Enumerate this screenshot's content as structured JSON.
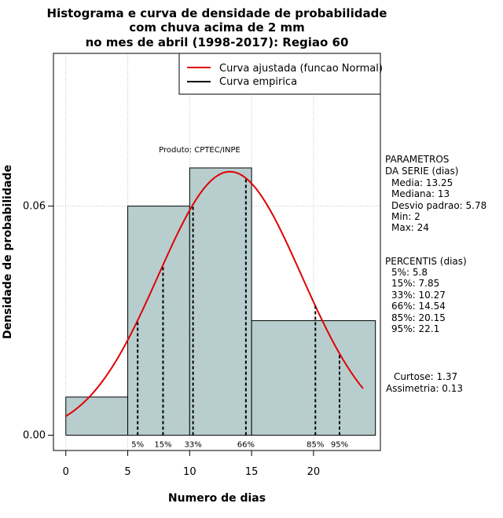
{
  "chart_data": {
    "type": "histogram",
    "title": [
      "Histograma e curva de densidade de probabilidade",
      "com chuva acima de 2 mm",
      "no mes de abril (1998-2017): Regiao 60"
    ],
    "xlabel": "Numero de dias",
    "ylabel": "Densidade de probabilidade",
    "xlim": [
      -1,
      25.4
    ],
    "ylim": [
      -0.004,
      0.1
    ],
    "xticks": [
      0,
      5,
      10,
      15,
      20
    ],
    "yticks": [
      0.0,
      0.06
    ],
    "ytick_labels": [
      "0.00",
      "0.06"
    ],
    "bins": [
      {
        "from": 0,
        "to": 5,
        "density": 0.01
      },
      {
        "from": 5,
        "to": 10,
        "density": 0.06
      },
      {
        "from": 10,
        "to": 15,
        "density": 0.07
      },
      {
        "from": 15,
        "to": 25,
        "density": 0.03
      }
    ],
    "bar_color": "#b8cece",
    "curve": {
      "name": "Curva ajustada (funcao Normal)",
      "mean": 13.25,
      "sd": 5.78,
      "from": 0,
      "to": 24,
      "color": "#e00000"
    },
    "empirical": {
      "name": "Curva empirica",
      "color": "#000000"
    },
    "percentile_lines": [
      {
        "label": "5%",
        "x": 5.8
      },
      {
        "label": "15%",
        "x": 7.85
      },
      {
        "label": "33%",
        "x": 10.27
      },
      {
        "label": "66%",
        "x": 14.54
      },
      {
        "label": "85%",
        "x": 20.15
      },
      {
        "label": "95%",
        "x": 22.1
      }
    ],
    "annotation": "Produto: CPTEC/INPE",
    "gridlines_x": [
      0,
      5,
      10,
      15,
      20
    ],
    "gridlines_y": [
      0.06,
      0.1
    ]
  },
  "side_panel": {
    "params_title": [
      "PARAMETROS",
      "DA SERIE (dias)"
    ],
    "params": [
      "Media: 13.25",
      "Mediana: 13",
      "Desvio padrao: 5.78",
      "Min: 2",
      "Max: 24"
    ],
    "perc_title": "PERCENTIS (dias)",
    "percentiles": [
      "5%: 5.8",
      "15%: 7.85",
      "33%: 10.27",
      "66%: 14.54",
      "85%: 20.15",
      "95%: 22.1"
    ],
    "curtose": "Curtose: 1.37",
    "assimetria": "Assimetria: 0.13"
  }
}
